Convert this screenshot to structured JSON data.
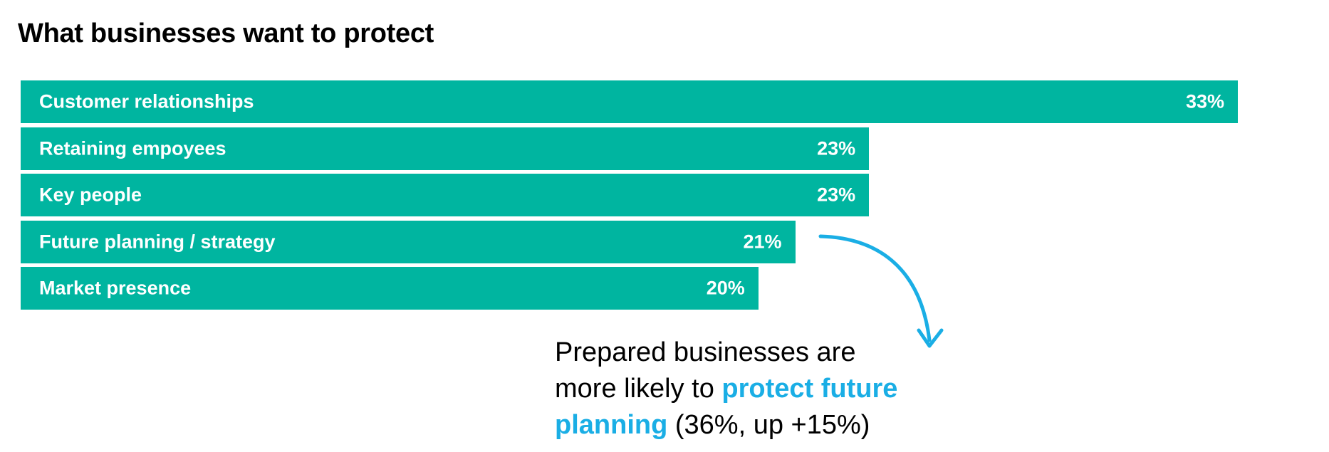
{
  "chart_data": {
    "type": "bar",
    "orientation": "horizontal",
    "title": "What businesses want to protect",
    "categories": [
      "Customer relationships",
      "Retaining empoyees",
      "Key people",
      "Future planning / strategy",
      "Market presence"
    ],
    "values": [
      33,
      23,
      23,
      21,
      20
    ],
    "value_labels": [
      "33%",
      "23%",
      "23%",
      "21%",
      "20%"
    ],
    "unit": "%",
    "xlim": [
      0,
      33
    ],
    "grid": false,
    "bar_color": "#00b5a0",
    "highlight_color": "#1aaee5",
    "arrow_from_category": "Future planning / strategy"
  },
  "callout": {
    "line1": "Prepared businesses are",
    "line2_prefix": "more likely to ",
    "highlight1": "protect future",
    "highlight2": "planning",
    "suffix": " (36%, up +15%)"
  }
}
